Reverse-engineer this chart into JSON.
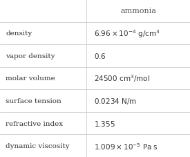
{
  "header_col1": "",
  "header_col2": "ammonia",
  "rows_left": [
    "density",
    "vapor density",
    "molar volume",
    "surface tension",
    "refractive index",
    "dynamic viscosity"
  ],
  "rows_right": [
    "$6.96\\times10^{-4}$ g/cm$^3$",
    "$0.6$",
    "$24500$ cm$^3$/mol",
    "$0.0234$ N/m",
    "$1.355$",
    "$1.009\\times10^{-5}$ Pa s"
  ],
  "bg_color": "#ffffff",
  "line_color": "#cccccc",
  "text_color": "#333333",
  "header_text_color": "#555555",
  "col_split": 0.455,
  "font_size": 7.5,
  "header_font_size": 8.0,
  "n_data_rows": 6
}
